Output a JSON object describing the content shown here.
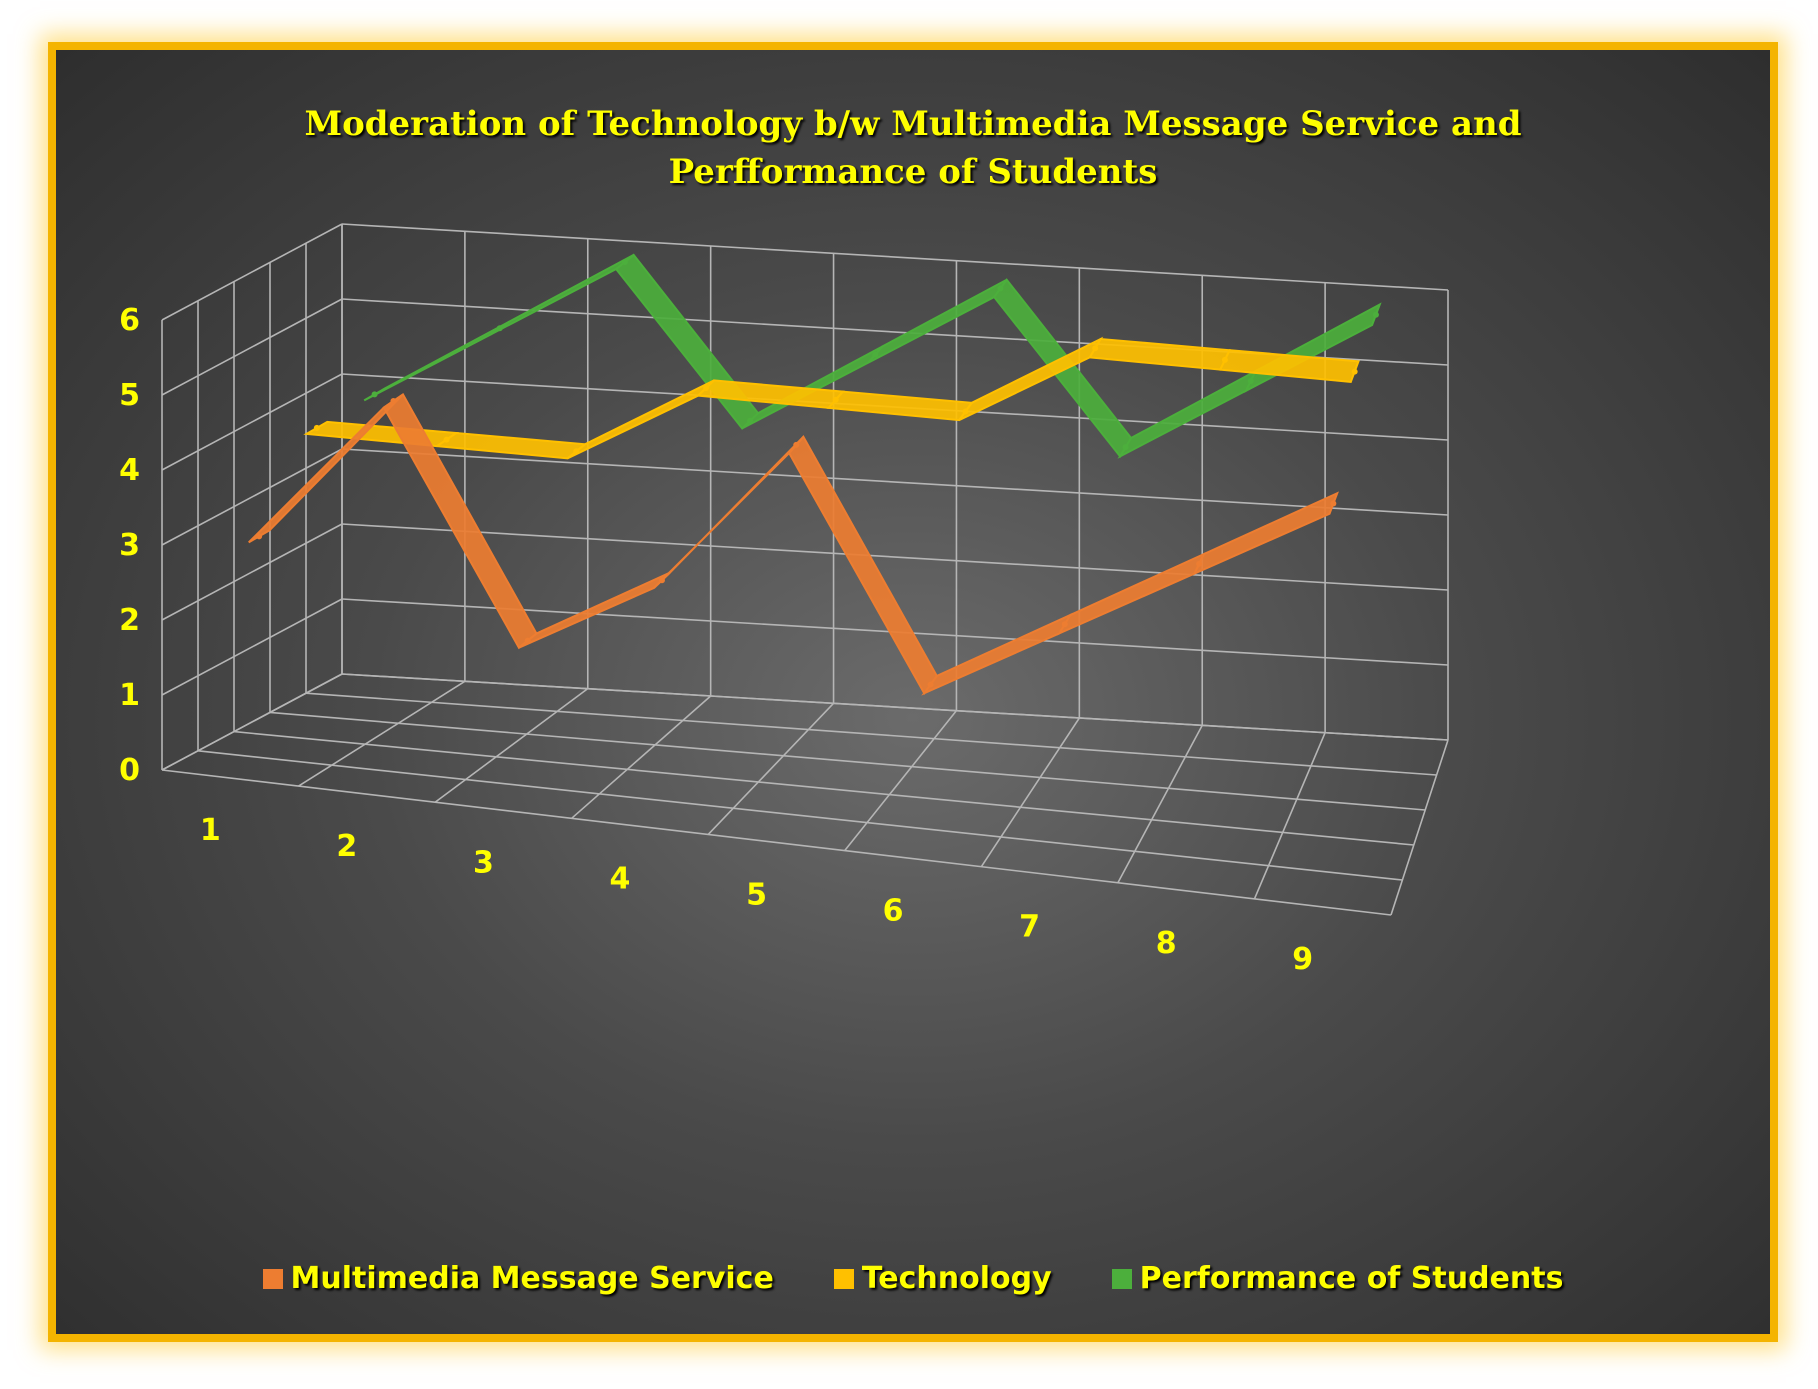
{
  "chart_data": {
    "type": "line",
    "style": "3d-ribbon",
    "title": "Moderation of Technology b/w Multimedia Message Service and Perfformance of Students",
    "categories": [
      "1",
      "2",
      "3",
      "4",
      "5",
      "6",
      "7",
      "8",
      "9"
    ],
    "y_ticks": [
      "0",
      "1",
      "2",
      "3",
      "4",
      "5",
      "6"
    ],
    "ylim": [
      0,
      6
    ],
    "grid": true,
    "legend_position": "bottom",
    "series": [
      {
        "name": "Multimedia Message Service",
        "color": "#ed7d31",
        "values": [
          3,
          5,
          2,
          3,
          5,
          2,
          3,
          4,
          5
        ]
      },
      {
        "name": "Technology",
        "color": "#ffc000",
        "values": [
          4,
          4,
          4,
          5,
          5,
          5,
          6,
          6,
          6
        ]
      },
      {
        "name": "Performance of Students",
        "color": "#4caf3c",
        "values": [
          4,
          5,
          6,
          4,
          5,
          6,
          4,
          5,
          6
        ]
      }
    ]
  },
  "colors": {
    "frame_border": "#f4b400",
    "text": "#ffff00",
    "grid": "#b5b5b5"
  }
}
